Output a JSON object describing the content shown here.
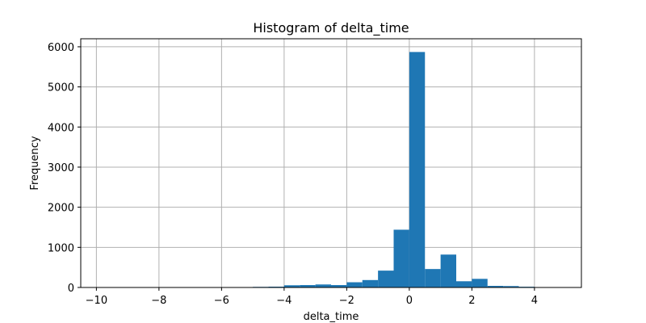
{
  "chart_data": {
    "type": "bar",
    "title": "Histogram of delta_time",
    "xlabel": "delta_time",
    "ylabel": "Frequency",
    "xlim": [
      -10.5,
      5.5
    ],
    "ylim": [
      0,
      6200
    ],
    "xticks": [
      -10,
      -8,
      -6,
      -4,
      -2,
      0,
      2,
      4
    ],
    "xtick_labels": [
      "−10",
      "−8",
      "−6",
      "−4",
      "−2",
      "0",
      "2",
      "4"
    ],
    "yticks": [
      0,
      1000,
      2000,
      3000,
      4000,
      5000,
      6000
    ],
    "ytick_labels": [
      "0",
      "1000",
      "2000",
      "3000",
      "4000",
      "5000",
      "6000"
    ],
    "grid": true,
    "bar_color": "#1f77b4",
    "bins": [
      {
        "start": -10.0,
        "end": -9.5,
        "count": 2
      },
      {
        "start": -9.5,
        "end": -9.0,
        "count": 1
      },
      {
        "start": -9.0,
        "end": -8.5,
        "count": 1
      },
      {
        "start": -8.5,
        "end": -8.0,
        "count": 2
      },
      {
        "start": -8.0,
        "end": -7.5,
        "count": 1
      },
      {
        "start": -7.5,
        "end": -7.0,
        "count": 2
      },
      {
        "start": -7.0,
        "end": -6.5,
        "count": 2
      },
      {
        "start": -6.5,
        "end": -6.0,
        "count": 3
      },
      {
        "start": -6.0,
        "end": -5.5,
        "count": 4
      },
      {
        "start": -5.5,
        "end": -5.0,
        "count": 6
      },
      {
        "start": -5.0,
        "end": -4.5,
        "count": 15
      },
      {
        "start": -4.5,
        "end": -4.0,
        "count": 20
      },
      {
        "start": -4.0,
        "end": -3.5,
        "count": 55
      },
      {
        "start": -3.5,
        "end": -3.0,
        "count": 60
      },
      {
        "start": -3.0,
        "end": -2.5,
        "count": 75
      },
      {
        "start": -2.5,
        "end": -2.0,
        "count": 60
      },
      {
        "start": -2.0,
        "end": -1.5,
        "count": 130
      },
      {
        "start": -1.5,
        "end": -1.0,
        "count": 185
      },
      {
        "start": -1.0,
        "end": -0.5,
        "count": 420
      },
      {
        "start": -0.5,
        "end": 0.0,
        "count": 1440
      },
      {
        "start": 0.0,
        "end": 0.5,
        "count": 5870
      },
      {
        "start": 0.5,
        "end": 1.0,
        "count": 460
      },
      {
        "start": 1.0,
        "end": 1.5,
        "count": 820
      },
      {
        "start": 1.5,
        "end": 2.0,
        "count": 155
      },
      {
        "start": 2.0,
        "end": 2.5,
        "count": 215
      },
      {
        "start": 2.5,
        "end": 3.0,
        "count": 40
      },
      {
        "start": 3.0,
        "end": 3.5,
        "count": 35
      },
      {
        "start": 3.5,
        "end": 4.0,
        "count": 18
      },
      {
        "start": 4.0,
        "end": 4.5,
        "count": 8
      },
      {
        "start": 4.5,
        "end": 5.0,
        "count": 4
      }
    ]
  }
}
